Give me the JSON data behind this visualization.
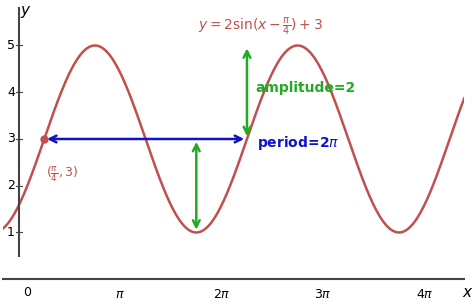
{
  "curve_color": "#c0504d",
  "curve_linewidth": 1.8,
  "midline": 3,
  "amplitude": 2,
  "phase": 0.7853981633974483,
  "xlim": [
    -0.5,
    13.8
  ],
  "ylim": [
    0.5,
    5.8
  ],
  "bg_color": "#ffffff",
  "axis_color": "#444444",
  "point_x": 0.7853981633974483,
  "point_y": 3,
  "green_color": "#22aa22",
  "blue_color": "#1111cc"
}
